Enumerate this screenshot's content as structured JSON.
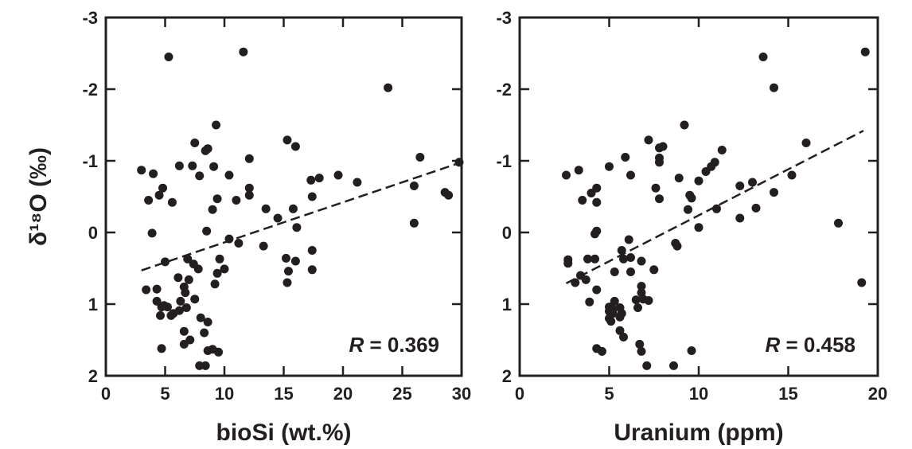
{
  "chart_data": [
    {
      "type": "scatter",
      "panel": "left",
      "xlabel": "bioSi (wt.%)",
      "ylabel": "δ¹⁸O (‰)",
      "xlim": [
        0,
        30
      ],
      "ylim": [
        2,
        -3
      ],
      "y_inverted": true,
      "xticks": [
        0,
        5,
        10,
        15,
        20,
        25,
        30
      ],
      "yticks": [
        -3,
        -2,
        -1,
        0,
        1,
        2
      ],
      "annotation": {
        "italic": "R",
        "rest": " = 0.369"
      },
      "trendline": {
        "x": [
          3.0,
          30.0
        ],
        "y": [
          0.53,
          -0.98
        ],
        "style": "dashed"
      },
      "points": [
        [
          5.3,
          -2.45
        ],
        [
          11.6,
          -2.52
        ],
        [
          23.8,
          -2.02
        ],
        [
          9.3,
          -1.5
        ],
        [
          7.5,
          -1.25
        ],
        [
          8.6,
          -1.17
        ],
        [
          8.4,
          -1.14
        ],
        [
          15.3,
          -1.29
        ],
        [
          16.0,
          -1.2
        ],
        [
          26.5,
          -1.05
        ],
        [
          12.1,
          -1.03
        ],
        [
          3.0,
          -0.87
        ],
        [
          4.0,
          -0.82
        ],
        [
          6.2,
          -0.93
        ],
        [
          7.3,
          -0.93
        ],
        [
          9.1,
          -0.92
        ],
        [
          10.4,
          -0.8
        ],
        [
          7.9,
          -0.79
        ],
        [
          29.8,
          -0.98
        ],
        [
          17.3,
          -0.73
        ],
        [
          18.0,
          -0.76
        ],
        [
          19.6,
          -0.8
        ],
        [
          21.2,
          -0.7
        ],
        [
          26.0,
          -0.65
        ],
        [
          4.8,
          -0.62
        ],
        [
          4.5,
          -0.52
        ],
        [
          3.6,
          -0.45
        ],
        [
          5.6,
          -0.42
        ],
        [
          9.4,
          -0.47
        ],
        [
          11.0,
          -0.45
        ],
        [
          12.1,
          -0.62
        ],
        [
          12.1,
          -0.52
        ],
        [
          17.4,
          -0.5
        ],
        [
          28.6,
          -0.56
        ],
        [
          28.9,
          -0.52
        ],
        [
          9.0,
          -0.32
        ],
        [
          13.5,
          -0.33
        ],
        [
          15.8,
          -0.33
        ],
        [
          14.5,
          -0.2
        ],
        [
          26.0,
          -0.13
        ],
        [
          16.1,
          -0.07
        ],
        [
          8.5,
          -0.02
        ],
        [
          3.9,
          0.01
        ],
        [
          10.4,
          0.09
        ],
        [
          11.2,
          0.15
        ],
        [
          13.3,
          0.19
        ],
        [
          17.4,
          0.25
        ],
        [
          15.2,
          0.36
        ],
        [
          16.0,
          0.4
        ],
        [
          5.0,
          0.41
        ],
        [
          6.9,
          0.37
        ],
        [
          9.6,
          0.37
        ],
        [
          7.4,
          0.44
        ],
        [
          7.8,
          0.51
        ],
        [
          9.4,
          0.57
        ],
        [
          10.0,
          0.51
        ],
        [
          15.4,
          0.54
        ],
        [
          17.4,
          0.52
        ],
        [
          6.1,
          0.63
        ],
        [
          7.0,
          0.66
        ],
        [
          9.2,
          0.72
        ],
        [
          15.3,
          0.7
        ],
        [
          3.4,
          0.8
        ],
        [
          4.3,
          0.79
        ],
        [
          6.6,
          0.76
        ],
        [
          6.7,
          0.84
        ],
        [
          7.5,
          0.93
        ],
        [
          6.3,
          0.96
        ],
        [
          4.3,
          0.96
        ],
        [
          4.9,
          1.02
        ],
        [
          4.7,
          1.04
        ],
        [
          5.2,
          1.04
        ],
        [
          5.7,
          1.13
        ],
        [
          6.2,
          1.09
        ],
        [
          4.6,
          1.16
        ],
        [
          5.5,
          1.16
        ],
        [
          6.8,
          1.05
        ],
        [
          8.0,
          1.19
        ],
        [
          8.6,
          1.25
        ],
        [
          6.6,
          1.38
        ],
        [
          8.3,
          1.4
        ],
        [
          7.1,
          1.5
        ],
        [
          6.6,
          1.56
        ],
        [
          4.7,
          1.62
        ],
        [
          8.6,
          1.65
        ],
        [
          9.0,
          1.63
        ],
        [
          9.5,
          1.67
        ],
        [
          7.9,
          1.86
        ],
        [
          8.4,
          1.86
        ]
      ]
    },
    {
      "type": "scatter",
      "panel": "right",
      "xlabel": "Uranium (ppm)",
      "ylabel": "",
      "xlim": [
        0,
        20
      ],
      "ylim": [
        2,
        -3
      ],
      "y_inverted": true,
      "xticks": [
        0,
        5,
        10,
        15,
        20
      ],
      "yticks": [
        -3,
        -2,
        -1,
        0,
        1,
        2
      ],
      "annotation": {
        "italic": "R",
        "rest": " = 0.458"
      },
      "trendline": {
        "x": [
          2.6,
          19.2
        ],
        "y": [
          0.71,
          -1.42
        ],
        "style": "dashed"
      },
      "points": [
        [
          13.6,
          -2.45
        ],
        [
          19.3,
          -2.52
        ],
        [
          14.2,
          -2.02
        ],
        [
          9.2,
          -1.5
        ],
        [
          7.2,
          -1.29
        ],
        [
          7.8,
          -1.18
        ],
        [
          8.0,
          -1.2
        ],
        [
          11.3,
          -1.15
        ],
        [
          16.0,
          -1.25
        ],
        [
          5.9,
          -1.05
        ],
        [
          7.8,
          -1.04
        ],
        [
          7.8,
          -0.98
        ],
        [
          10.9,
          -0.98
        ],
        [
          10.7,
          -0.92
        ],
        [
          10.4,
          -0.85
        ],
        [
          5.0,
          -0.92
        ],
        [
          3.3,
          -0.87
        ],
        [
          2.6,
          -0.8
        ],
        [
          6.2,
          -0.8
        ],
        [
          8.9,
          -0.76
        ],
        [
          10.0,
          -0.72
        ],
        [
          15.2,
          -0.8
        ],
        [
          12.3,
          -0.65
        ],
        [
          13.0,
          -0.7
        ],
        [
          4.3,
          -0.62
        ],
        [
          7.6,
          -0.62
        ],
        [
          14.2,
          -0.56
        ],
        [
          4.0,
          -0.55
        ],
        [
          3.5,
          -0.45
        ],
        [
          4.3,
          -0.42
        ],
        [
          9.5,
          -0.52
        ],
        [
          9.6,
          -0.48
        ],
        [
          7.8,
          -0.47
        ],
        [
          9.4,
          -0.32
        ],
        [
          11.0,
          -0.33
        ],
        [
          13.2,
          -0.34
        ],
        [
          12.3,
          -0.2
        ],
        [
          17.8,
          -0.13
        ],
        [
          10.0,
          -0.07
        ],
        [
          4.3,
          -0.02
        ],
        [
          4.2,
          0.02
        ],
        [
          6.1,
          0.1
        ],
        [
          8.7,
          0.15
        ],
        [
          8.8,
          0.19
        ],
        [
          5.7,
          0.25
        ],
        [
          2.7,
          0.38
        ],
        [
          2.7,
          0.43
        ],
        [
          3.8,
          0.37
        ],
        [
          4.2,
          0.37
        ],
        [
          5.8,
          0.37
        ],
        [
          6.2,
          0.35
        ],
        [
          6.8,
          0.4
        ],
        [
          3.1,
          0.7
        ],
        [
          3.4,
          0.6
        ],
        [
          3.7,
          0.66
        ],
        [
          4.3,
          0.8
        ],
        [
          5.3,
          0.55
        ],
        [
          6.2,
          0.55
        ],
        [
          7.5,
          0.52
        ],
        [
          6.8,
          0.75
        ],
        [
          6.8,
          0.84
        ],
        [
          6.5,
          0.94
        ],
        [
          5.3,
          0.96
        ],
        [
          6.9,
          0.93
        ],
        [
          7.2,
          0.95
        ],
        [
          3.9,
          0.97
        ],
        [
          5.0,
          1.04
        ],
        [
          5.2,
          1.07
        ],
        [
          5.0,
          1.1
        ],
        [
          5.6,
          1.05
        ],
        [
          5.2,
          1.13
        ],
        [
          5.0,
          1.2
        ],
        [
          5.1,
          1.24
        ],
        [
          6.6,
          1.05
        ],
        [
          5.7,
          1.13
        ],
        [
          5.6,
          1.18
        ],
        [
          5.6,
          1.37
        ],
        [
          5.8,
          1.46
        ],
        [
          4.3,
          1.62
        ],
        [
          4.6,
          1.66
        ],
        [
          6.7,
          1.56
        ],
        [
          6.8,
          1.66
        ],
        [
          9.6,
          1.65
        ],
        [
          7.1,
          1.86
        ],
        [
          8.6,
          1.86
        ],
        [
          19.1,
          0.7
        ]
      ]
    }
  ]
}
